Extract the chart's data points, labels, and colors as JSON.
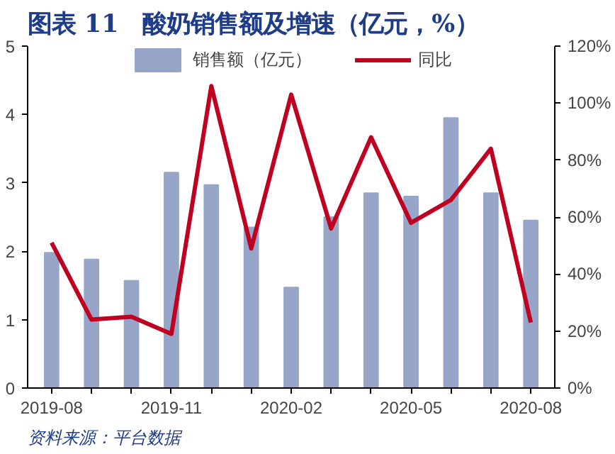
{
  "chart_data": {
    "type": "bar",
    "title": "图表 11　酸奶销售额及增速（亿元，%）",
    "categories": [
      "2019-08",
      null,
      null,
      "2019-11",
      null,
      null,
      "2020-02",
      null,
      null,
      "2020-05",
      null,
      null,
      "2020-08"
    ],
    "series": [
      {
        "name": "销售额（亿元）",
        "color": "#97a6c8",
        "values": [
          1.98,
          1.88,
          1.57,
          3.15,
          2.97,
          2.35,
          1.47,
          2.5,
          2.85,
          2.8,
          3.95,
          2.85,
          2.45
        ]
      },
      {
        "name": "同比",
        "type": "line",
        "axis": "y2",
        "color": "#c00020",
        "values": [
          51,
          24,
          25,
          19,
          106,
          49,
          103,
          56,
          88,
          58,
          66,
          84,
          23
        ]
      }
    ],
    "ylim": [
      0,
      5
    ],
    "yticks": [
      0,
      1,
      2,
      3,
      4,
      5
    ],
    "y2lim": [
      0,
      120
    ],
    "y2ticks": [
      {
        "value": 0,
        "label": "0%"
      },
      {
        "value": 20,
        "label": "20%"
      },
      {
        "value": 40,
        "label": "40%"
      },
      {
        "value": 60,
        "label": "60%"
      },
      {
        "value": 80,
        "label": "80%"
      },
      {
        "value": 100,
        "label": "100%"
      },
      {
        "value": 120,
        "label": "120%"
      }
    ],
    "legend": "top",
    "grid": false,
    "line_style": "solid",
    "marker": "none",
    "annotations": [
      "资料来源：平台数据"
    ]
  }
}
